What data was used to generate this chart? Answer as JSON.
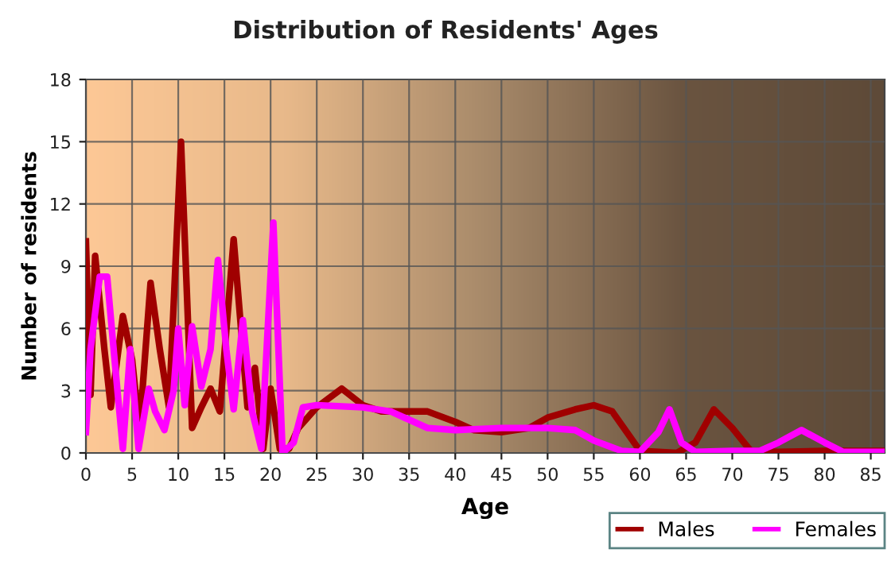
{
  "chart_data": {
    "type": "line",
    "title": "Distribution of Residents' Ages",
    "xlabel": "Age",
    "ylabel": "Number of residents",
    "xlim": [
      0,
      86.5
    ],
    "xticks": [
      0,
      5,
      10,
      15,
      20,
      25,
      30,
      35,
      40,
      45,
      50,
      55,
      60,
      65,
      70,
      75,
      80,
      85
    ],
    "ylim": [
      0,
      18
    ],
    "yticks": [
      0,
      3,
      6,
      9,
      12,
      15,
      18
    ],
    "grid": true,
    "legend": "bottom right",
    "line_style": "solid",
    "marker": "none",
    "series": [
      {
        "name": "Males",
        "color": "#a00000",
        "x": [
          0,
          0.5,
          1,
          2,
          2.7,
          4,
          5,
          5.8,
          7,
          8,
          9,
          10.3,
          11.5,
          12.5,
          13.5,
          14.5,
          16,
          17.5,
          18.3,
          19.2,
          20,
          21,
          22,
          23,
          25,
          27.7,
          30,
          32,
          35,
          37,
          40,
          42,
          45,
          48,
          50,
          53,
          55,
          57,
          60,
          62,
          64,
          66,
          68,
          70,
          72,
          75,
          80,
          86.5
        ],
        "values": [
          10.2,
          2.8,
          9.5,
          5,
          2.2,
          6.6,
          4.5,
          1.1,
          8.2,
          5,
          2.2,
          15,
          1.2,
          2.2,
          3.1,
          2,
          10.3,
          2.2,
          4.1,
          0.2,
          3.1,
          0.2,
          0.2,
          1.2,
          2.2,
          3.1,
          2.3,
          2,
          2,
          2,
          1.5,
          1.1,
          1,
          1.2,
          1.7,
          2.1,
          2.3,
          2,
          0.1,
          0.05,
          0,
          0.5,
          2.1,
          1.2,
          0.1,
          0.05,
          0.1,
          0.1
        ]
      },
      {
        "name": "Females",
        "color": "#ff00ff",
        "x": [
          0,
          0.5,
          1.5,
          2.3,
          3,
          4,
          4.8,
          5.7,
          6.8,
          7.5,
          8.5,
          9.5,
          10,
          10.7,
          11.5,
          12.5,
          13.5,
          14.3,
          15.2,
          16,
          17,
          18,
          19,
          20.3,
          21.3,
          22.5,
          23.5,
          25,
          30,
          33,
          37,
          40,
          45,
          50,
          53,
          55,
          58,
          60,
          62,
          63.2,
          64.5,
          66,
          70,
          73,
          75,
          77.5,
          80,
          82,
          86.5
        ],
        "values": [
          1,
          5,
          8.5,
          8.5,
          5,
          0.2,
          5,
          0.2,
          3.1,
          2,
          1.1,
          3,
          6,
          2.3,
          6.1,
          3.2,
          5,
          9.3,
          5,
          2.1,
          6.4,
          2,
          0.2,
          11.1,
          0,
          0.5,
          2.2,
          2.3,
          2.2,
          2,
          1.2,
          1.1,
          1.2,
          1.2,
          1.1,
          0.6,
          0.1,
          0.05,
          1,
          2.1,
          0.5,
          0.05,
          0.1,
          0.1,
          0.5,
          1.1,
          0.5,
          0.05,
          0.05
        ]
      }
    ]
  }
}
